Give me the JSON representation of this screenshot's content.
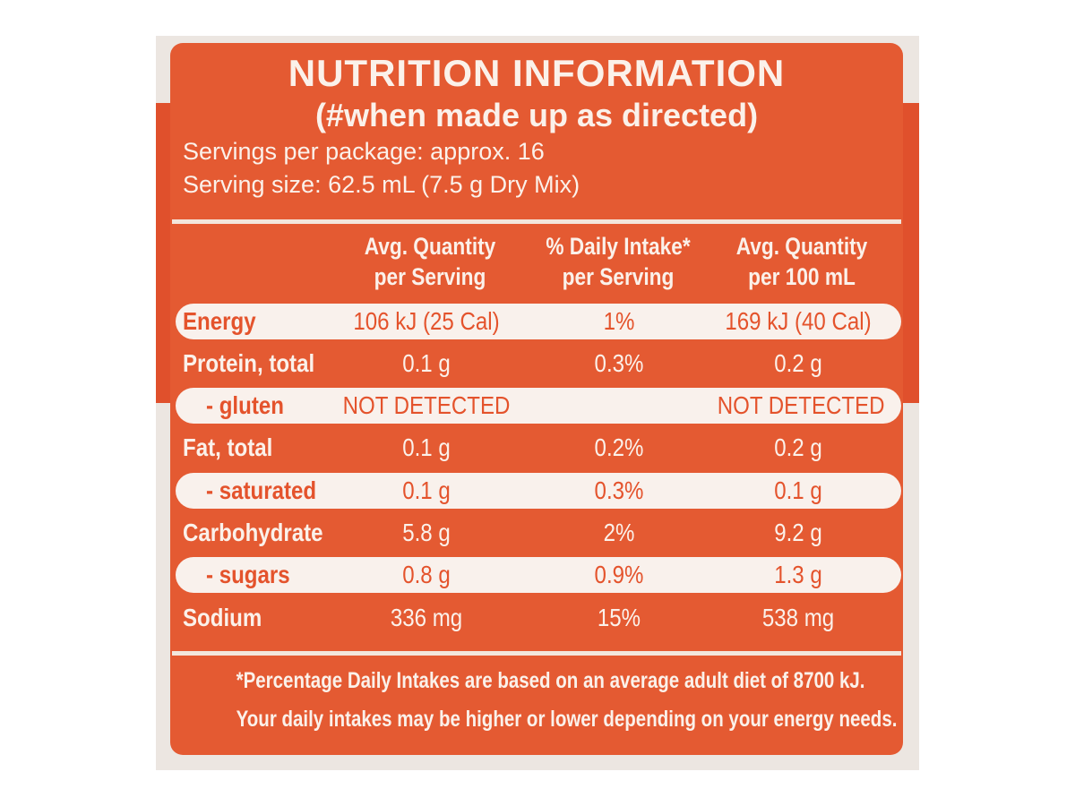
{
  "label": {
    "title": "NUTRITION INFORMATION",
    "subtitle": "(#when made up as directed)",
    "servings_per_package": "Servings per package: approx. 16",
    "serving_size": "Serving size: 62.5 mL (7.5 g Dry Mix)",
    "colors": {
      "panel": "#e45a32",
      "text": "#fbf1ea",
      "pill": "#f9f1ec"
    }
  },
  "table": {
    "headers": [
      {
        "line1": "Avg. Quantity",
        "line2": "per Serving"
      },
      {
        "line1": "% Daily Intake*",
        "line2": "per Serving"
      },
      {
        "line1": "Avg. Quantity",
        "line2": "per 100 mL"
      }
    ],
    "rows": [
      {
        "label": "Energy",
        "per_serving": "106 kJ (25 Cal)",
        "daily_intake": "1%",
        "per_100ml": "169 kJ (40 Cal)"
      },
      {
        "label": "Protein, total",
        "per_serving": "0.1 g",
        "daily_intake": "0.3%",
        "per_100ml": "0.2 g"
      },
      {
        "label": "- gluten",
        "per_serving": "NOT DETECTED",
        "daily_intake": "",
        "per_100ml": "NOT DETECTED"
      },
      {
        "label": "Fat, total",
        "per_serving": "0.1 g",
        "daily_intake": "0.2%",
        "per_100ml": "0.2 g"
      },
      {
        "label": "- saturated",
        "per_serving": "0.1 g",
        "daily_intake": "0.3%",
        "per_100ml": "0.1 g"
      },
      {
        "label": "Carbohydrate",
        "per_serving": "5.8 g",
        "daily_intake": "2%",
        "per_100ml": "9.2 g"
      },
      {
        "label": "- sugars",
        "per_serving": "0.8 g",
        "daily_intake": "0.9%",
        "per_100ml": "1.3 g"
      },
      {
        "label": "Sodium",
        "per_serving": "336 mg",
        "daily_intake": "15%",
        "per_100ml": "538 mg"
      }
    ]
  },
  "footnote": {
    "line1": "*Percentage Daily Intakes are based on an average adult diet of 8700 kJ.",
    "line2": "Your daily intakes may be higher or lower depending on your energy needs."
  }
}
